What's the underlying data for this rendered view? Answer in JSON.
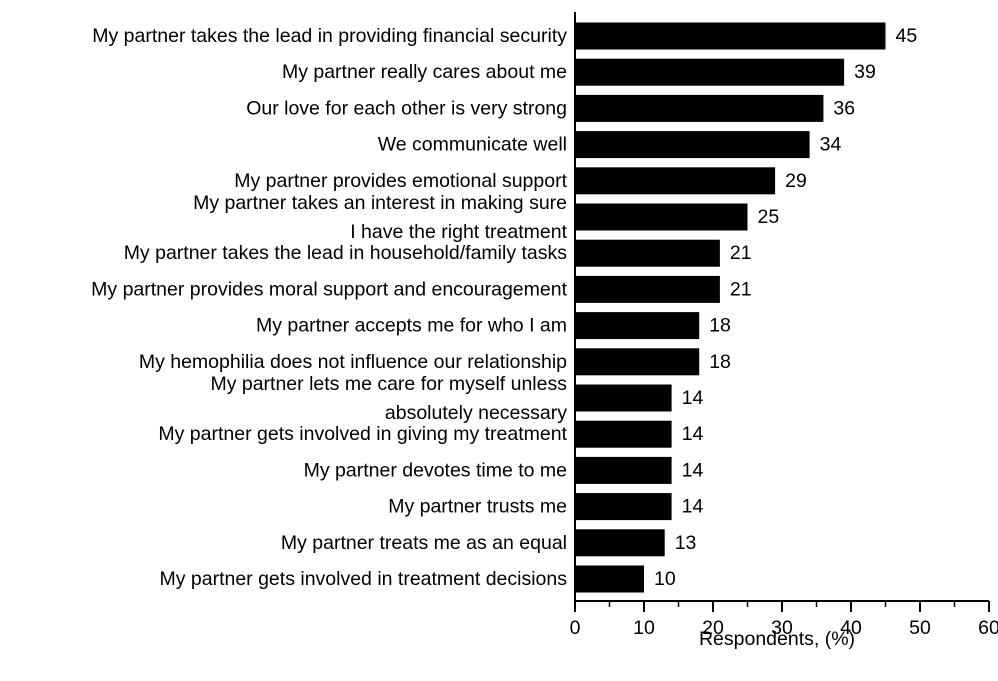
{
  "chart_data": {
    "type": "bar",
    "orientation": "horizontal",
    "categories": [
      [
        "My partner takes the lead in providing financial security"
      ],
      [
        "My partner really cares about me"
      ],
      [
        "Our love for each other is very strong"
      ],
      [
        "We communicate well"
      ],
      [
        "My partner provides emotional support"
      ],
      [
        "My partner takes an interest in making sure",
        "I have the right treatment"
      ],
      [
        "My partner takes the lead in household/family tasks"
      ],
      [
        "My partner provides moral support and encouragement"
      ],
      [
        "My partner accepts me for who I am"
      ],
      [
        "My hemophilia does not influence our relationship"
      ],
      [
        "My partner lets me care for myself unless",
        "absolutely necessary"
      ],
      [
        "My partner gets involved in giving my treatment"
      ],
      [
        "My partner devotes time to me"
      ],
      [
        "My partner trusts me"
      ],
      [
        "My partner treats me as an equal"
      ],
      [
        "My partner gets involved in treatment decisions"
      ]
    ],
    "values": [
      45,
      39,
      36,
      34,
      29,
      25,
      21,
      21,
      18,
      18,
      14,
      14,
      14,
      14,
      13,
      10
    ],
    "value_labels": [
      "45",
      "39",
      "36",
      "34",
      "29",
      "25",
      "21",
      "21",
      "18",
      "18",
      "14",
      "14",
      "14",
      "14",
      "13",
      "10"
    ],
    "xlabel": "Respondents, (%)",
    "xlim": [
      0,
      60
    ],
    "xticks": [
      0,
      10,
      20,
      30,
      40,
      50,
      60
    ],
    "xtick_labels": [
      "0",
      "10",
      "20",
      "30",
      "40",
      "50",
      "60"
    ],
    "minor_tick_step": 5,
    "bar_color": "#000000",
    "grid": false,
    "legend": "none"
  }
}
